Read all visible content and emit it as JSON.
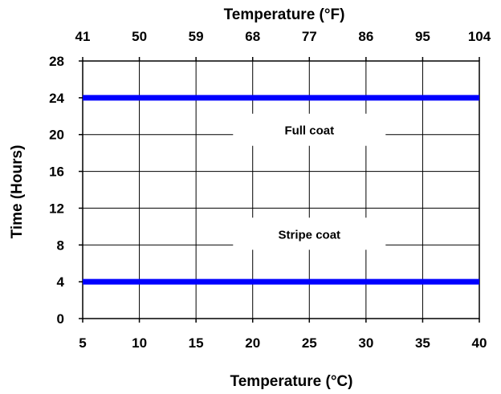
{
  "chart_data": {
    "type": "line",
    "xlabel": "Temperature (°C)",
    "x2label": "Temperature (°F)",
    "ylabel": "Time (Hours)",
    "xlim": [
      5,
      40
    ],
    "ylim": [
      0,
      28
    ],
    "x_ticks": [
      "5",
      "10",
      "15",
      "20",
      "25",
      "30",
      "35",
      "40"
    ],
    "x_tick_values": [
      5,
      10,
      15,
      20,
      25,
      30,
      35,
      40
    ],
    "x2_ticks": [
      "41",
      "50",
      "59",
      "68",
      "77",
      "86",
      "95",
      "104"
    ],
    "y_ticks": [
      "0",
      "4",
      "8",
      "12",
      "16",
      "20",
      "24",
      "28"
    ],
    "y_tick_values": [
      0,
      4,
      8,
      12,
      16,
      20,
      24,
      28
    ],
    "grid": true,
    "line_color": "#0000ff",
    "series": [
      {
        "x": [
          5,
          40
        ],
        "y": [
          24,
          24
        ]
      },
      {
        "x": [
          5,
          40
        ],
        "y": [
          4,
          4
        ]
      }
    ],
    "annotations": [
      {
        "text": "Full coat",
        "x": 25,
        "y": 20
      },
      {
        "text": "Stripe coat",
        "x": 25,
        "y": 8.7
      }
    ]
  }
}
